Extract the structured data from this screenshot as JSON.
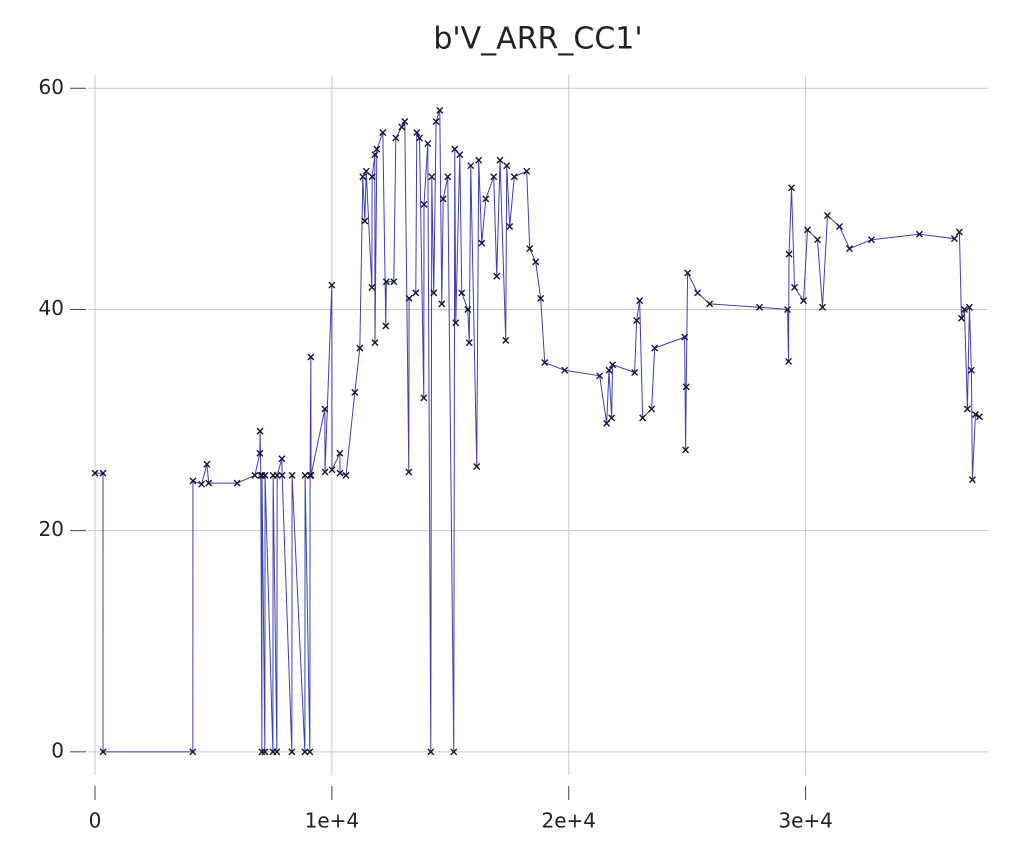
{
  "chart_data": {
    "type": "line",
    "title": "b'V_ARR_CC1'",
    "x": [
      0,
      338,
      340,
      4130,
      4135,
      4500,
      4725,
      4800,
      6000,
      6750,
      6961,
      6970,
      7000,
      7046,
      7050,
      7172,
      7180,
      7510,
      7520,
      7679,
      7690,
      7890,
      7900,
      8311,
      8320,
      8860,
      8870,
      9071,
      9080,
      9113,
      9120,
      9704,
      9710,
      9999,
      10005,
      10337,
      10345,
      10600,
      10969,
      11180,
      11307,
      11391,
      11450,
      11687,
      11700,
      11813,
      11820,
      11900,
      12151,
      12277,
      12300,
      12615,
      12700,
      12952,
      13079,
      13248,
      13260,
      13543,
      13585,
      13700,
      13880,
      13890,
      14049,
      14176,
      14218,
      14302,
      14400,
      14555,
      14640,
      14700,
      14893,
      15146,
      15188,
      15230,
      15400,
      15484,
      15737,
      15800,
      15863,
      16116,
      16200,
      16327,
      16500,
      16834,
      16960,
      17100,
      17340,
      17382,
      17508,
      17700,
      18226,
      18352,
      18605,
      18816,
      18986,
      19829,
      21306,
      21601,
      21700,
      21812,
      21850,
      22782,
      22867,
      22994,
      23120,
      23500,
      23626,
      24892,
      24934,
      24960,
      25018,
      25440,
      25947,
      28056,
      29237,
      29279,
      29300,
      29406,
      29532,
      29912,
      30080,
      30502,
      30713,
      30924,
      31431,
      31853,
      32781,
      34806,
      36283,
      36494,
      36578,
      36705,
      36831,
      36916,
      37000,
      37042,
      37169,
      37338
    ],
    "values": [
      25.2,
      25.2,
      0,
      0,
      24.5,
      24.2,
      26,
      24.3,
      24.3,
      25,
      27,
      29,
      25,
      0,
      25,
      0,
      25,
      0,
      25,
      0,
      25,
      26.5,
      25,
      0,
      25,
      0,
      25,
      0,
      25,
      35.7,
      25,
      31,
      25.3,
      42.2,
      25.5,
      27,
      25.2,
      25,
      32.5,
      36.5,
      52,
      48,
      52.5,
      42,
      52,
      54,
      37,
      54.5,
      56,
      38.5,
      42.5,
      42.5,
      55.5,
      56.5,
      57,
      25.3,
      41,
      41.5,
      56,
      55.5,
      32,
      49.5,
      55,
      0,
      52,
      41.5,
      57,
      58,
      40.5,
      50,
      52,
      0,
      54.5,
      38.8,
      54,
      41.5,
      40,
      37,
      53,
      25.8,
      53.5,
      46,
      50,
      52,
      43,
      53.5,
      37.2,
      53,
      47.5,
      52,
      52.5,
      45.5,
      44.3,
      41,
      35.2,
      34.5,
      34,
      29.7,
      34.5,
      30.2,
      35,
      34.3,
      39,
      40.8,
      30.2,
      31,
      36.5,
      37.5,
      27.3,
      33,
      43.3,
      41.5,
      40.5,
      40.2,
      40,
      35.3,
      45,
      51,
      42,
      40.8,
      47.2,
      46.3,
      40.2,
      48.5,
      47.5,
      45.5,
      46.3,
      46.8,
      46.4,
      47,
      39.2,
      40,
      31,
      40.2,
      34.5,
      24.6,
      30.5,
      30.3
    ],
    "color": "#4040b0",
    "marker_color": "#14143c",
    "marker": "x",
    "xlim": [
      0,
      37700
    ],
    "ylim": [
      -3,
      61.2
    ],
    "xticks": [
      0,
      {
        "value": 10000,
        "label": "1e+4"
      },
      {
        "value": 20000,
        "label": "2e+4"
      },
      {
        "value": 30000,
        "label": "3e+4"
      }
    ],
    "yticks": [
      0,
      20,
      40,
      60
    ],
    "grid": true
  }
}
